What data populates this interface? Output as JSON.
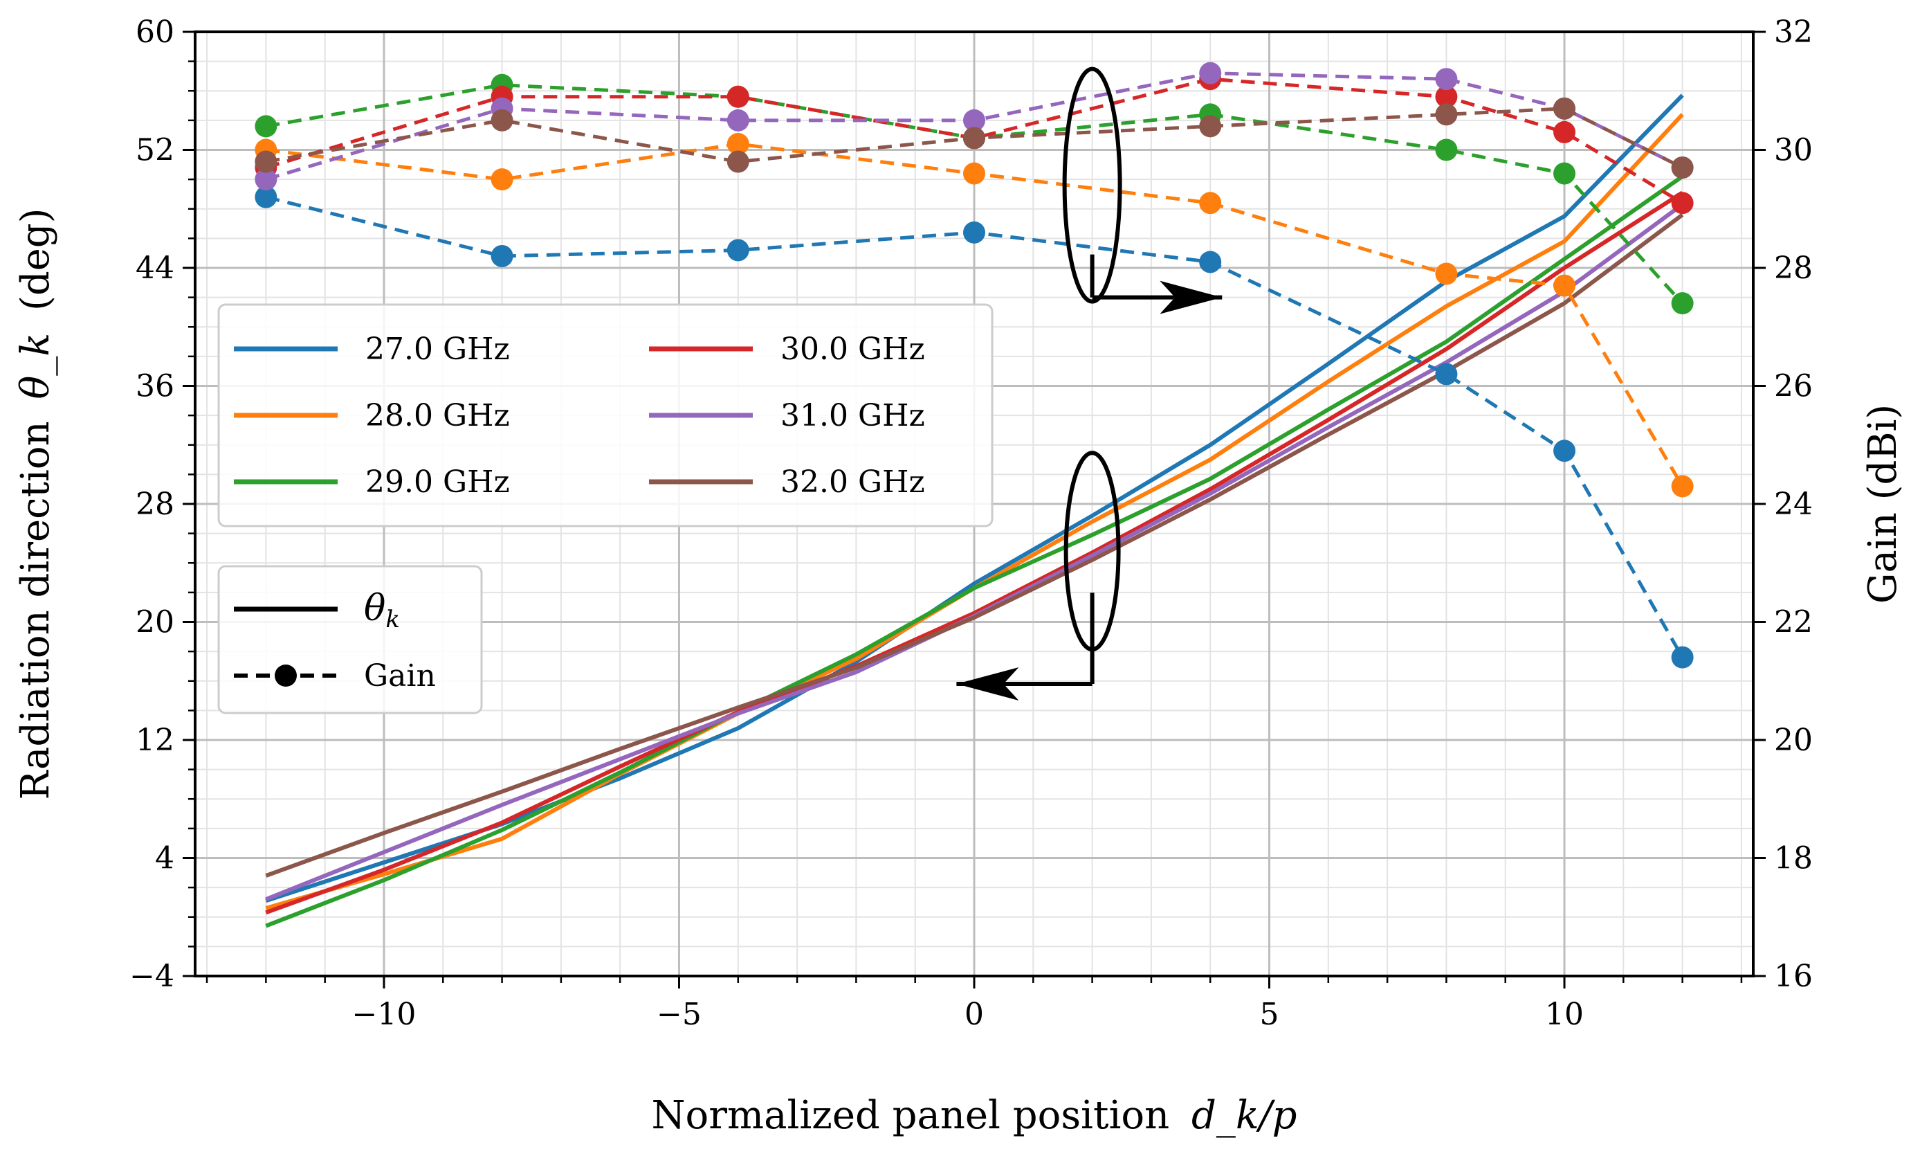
{
  "chart_data": {
    "type": "line",
    "title": "",
    "xlabel": "Normalized panel position",
    "xlabel_math": "d_k/p",
    "ylabel_left": "Radiation direction",
    "ylabel_left_math": "θ_k",
    "ylabel_left_unit": "(deg)",
    "ylabel_right": "Gain (dBi)",
    "xlim": [
      -13.2,
      13.2
    ],
    "ylim_left": [
      -4,
      60
    ],
    "ylim_right": [
      16,
      32
    ],
    "x_ticks": [
      -10,
      -5,
      0,
      5,
      10
    ],
    "x_tick_labels": [
      "−10",
      "−5",
      "0",
      "5",
      "10"
    ],
    "y_left_ticks": [
      -4,
      4,
      12,
      20,
      28,
      36,
      44,
      52,
      60
    ],
    "y_left_tick_labels": [
      "−4",
      "4",
      "12",
      "20",
      "28",
      "36",
      "44",
      "52",
      "60"
    ],
    "y_right_ticks": [
      16,
      18,
      20,
      22,
      24,
      26,
      28,
      30,
      32
    ],
    "y_right_tick_labels": [
      "16",
      "18",
      "20",
      "22",
      "24",
      "26",
      "28",
      "30",
      "32"
    ],
    "grid": true,
    "colors": {
      "27.0 GHz": "#1f77b4",
      "28.0 GHz": "#ff7f0e",
      "29.0 GHz": "#2ca02c",
      "30.0 GHz": "#d62728",
      "31.0 GHz": "#9467bd",
      "32.0 GHz": "#8c564b"
    },
    "theta_x": [
      -12,
      -10,
      -8,
      -6,
      -4,
      -2,
      0,
      2,
      4,
      6,
      8,
      10,
      12
    ],
    "theta_series": [
      {
        "name": "27.0 GHz",
        "values": [
          1.1,
          3.7,
          6.3,
          9.4,
          12.8,
          17.3,
          22.6,
          27.2,
          32.0,
          37.5,
          43.1,
          47.5,
          55.7
        ]
      },
      {
        "name": "28.0 GHz",
        "values": [
          0.6,
          2.9,
          5.3,
          9.7,
          13.8,
          17.5,
          22.3,
          26.8,
          31.0,
          36.3,
          41.4,
          45.8,
          54.4
        ]
      },
      {
        "name": "29.0 GHz",
        "values": [
          -0.6,
          2.5,
          5.9,
          9.8,
          13.9,
          17.8,
          22.3,
          25.9,
          29.7,
          34.4,
          39.0,
          44.6,
          50.2
        ]
      },
      {
        "name": "30.0 GHz",
        "values": [
          0.3,
          3.2,
          6.4,
          10.2,
          13.9,
          17.0,
          20.6,
          24.7,
          29.0,
          33.7,
          38.5,
          44.0,
          49.1
        ]
      },
      {
        "name": "31.0 GHz",
        "values": [
          1.2,
          4.4,
          7.6,
          10.7,
          13.8,
          16.6,
          20.4,
          24.5,
          28.7,
          33.2,
          37.6,
          42.4,
          48.3
        ]
      },
      {
        "name": "32.0 GHz",
        "values": [
          2.8,
          5.7,
          8.5,
          11.4,
          14.2,
          16.9,
          20.3,
          24.2,
          28.3,
          32.7,
          37.0,
          41.6,
          47.6
        ]
      }
    ],
    "gain_x": [
      -12,
      -8,
      -4,
      0,
      4,
      8,
      10,
      12
    ],
    "gain_series": [
      {
        "name": "27.0 GHz",
        "values": [
          29.2,
          28.2,
          28.3,
          28.6,
          28.1,
          26.2,
          24.9,
          21.4
        ]
      },
      {
        "name": "28.0 GHz",
        "values": [
          30.0,
          29.5,
          30.1,
          29.6,
          29.1,
          27.9,
          27.7,
          24.3
        ]
      },
      {
        "name": "29.0 GHz",
        "values": [
          30.4,
          31.1,
          30.9,
          30.2,
          30.6,
          30.0,
          29.6,
          27.4
        ]
      },
      {
        "name": "30.0 GHz",
        "values": [
          29.7,
          30.9,
          30.9,
          30.2,
          31.2,
          30.9,
          30.3,
          29.1
        ]
      },
      {
        "name": "31.0 GHz",
        "values": [
          29.5,
          30.7,
          30.5,
          30.5,
          31.3,
          31.2,
          30.7,
          29.7
        ]
      },
      {
        "name": "32.0 GHz",
        "values": [
          29.8,
          30.5,
          29.8,
          30.2,
          30.4,
          30.6,
          30.7,
          29.7
        ]
      }
    ],
    "legend": {
      "position": "middle-left",
      "entries": [
        "27.0 GHz",
        "28.0 GHz",
        "29.0 GHz",
        "30.0 GHz",
        "31.0 GHz",
        "32.0 GHz"
      ]
    },
    "style_legend": {
      "position": "lower-left",
      "theta_label": "θ",
      "theta_sub": "k",
      "gain_label": "Gain"
    },
    "annotations": [
      {
        "description": "ellipse around dashed gain curves with arrow pointing right",
        "target_axis": "right",
        "ellipse_center": {
          "x": 2.0,
          "y": 49.6
        },
        "arrow_end": {
          "x": 4.2,
          "y": 42.0
        }
      },
      {
        "description": "ellipse around solid theta curves with arrow pointing left",
        "target_axis": "left",
        "ellipse_center": {
          "x": 2.0,
          "y": 24.8
        },
        "arrow_end": {
          "x": -0.3,
          "y": 15.8
        }
      }
    ]
  }
}
